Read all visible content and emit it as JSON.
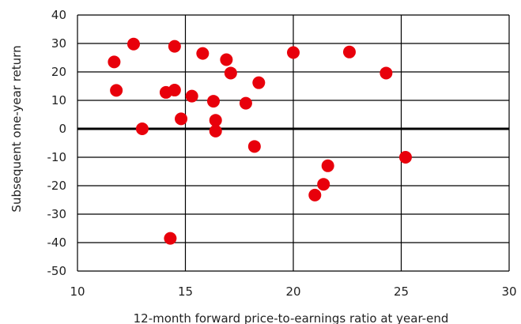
{
  "chart_data": {
    "type": "scatter",
    "title": "",
    "xlabel": "12-month forward price-to-earnings ratio at year-end",
    "ylabel": "Subsequent one-year return",
    "xlim": [
      10,
      30
    ],
    "ylim": [
      -50,
      40
    ],
    "x_ticks": [
      10,
      15,
      20,
      25,
      30
    ],
    "y_ticks": [
      40,
      30,
      20,
      10,
      0,
      -10,
      -20,
      -30,
      -40,
      -50
    ],
    "x_tick_labels": [
      "10",
      "15",
      "20",
      "25",
      "30"
    ],
    "y_tick_labels": [
      "40",
      "30",
      "20",
      "10",
      "0",
      "-10",
      "-20",
      "-30",
      "-40",
      "-50"
    ],
    "grid": true,
    "point_color": "#e8000b",
    "points": [
      {
        "x": 11.7,
        "y": 23.5
      },
      {
        "x": 11.8,
        "y": 13.5
      },
      {
        "x": 12.6,
        "y": 29.8
      },
      {
        "x": 13.0,
        "y": 0.0
      },
      {
        "x": 14.1,
        "y": 12.8
      },
      {
        "x": 14.5,
        "y": 13.6
      },
      {
        "x": 14.5,
        "y": 29.0
      },
      {
        "x": 14.8,
        "y": 3.5
      },
      {
        "x": 14.3,
        "y": -38.5
      },
      {
        "x": 15.3,
        "y": 11.5
      },
      {
        "x": 15.8,
        "y": 26.5
      },
      {
        "x": 16.3,
        "y": 9.7
      },
      {
        "x": 16.4,
        "y": 3.0
      },
      {
        "x": 16.4,
        "y": -0.8
      },
      {
        "x": 16.9,
        "y": 24.3
      },
      {
        "x": 17.1,
        "y": 19.6
      },
      {
        "x": 17.8,
        "y": 9.0
      },
      {
        "x": 18.2,
        "y": -6.2
      },
      {
        "x": 18.4,
        "y": 16.2
      },
      {
        "x": 20.0,
        "y": 26.8
      },
      {
        "x": 21.0,
        "y": -23.3
      },
      {
        "x": 21.4,
        "y": -19.5
      },
      {
        "x": 21.6,
        "y": -13.0
      },
      {
        "x": 22.6,
        "y": 27.0
      },
      {
        "x": 24.3,
        "y": 19.6
      },
      {
        "x": 25.2,
        "y": -10.0
      }
    ]
  }
}
